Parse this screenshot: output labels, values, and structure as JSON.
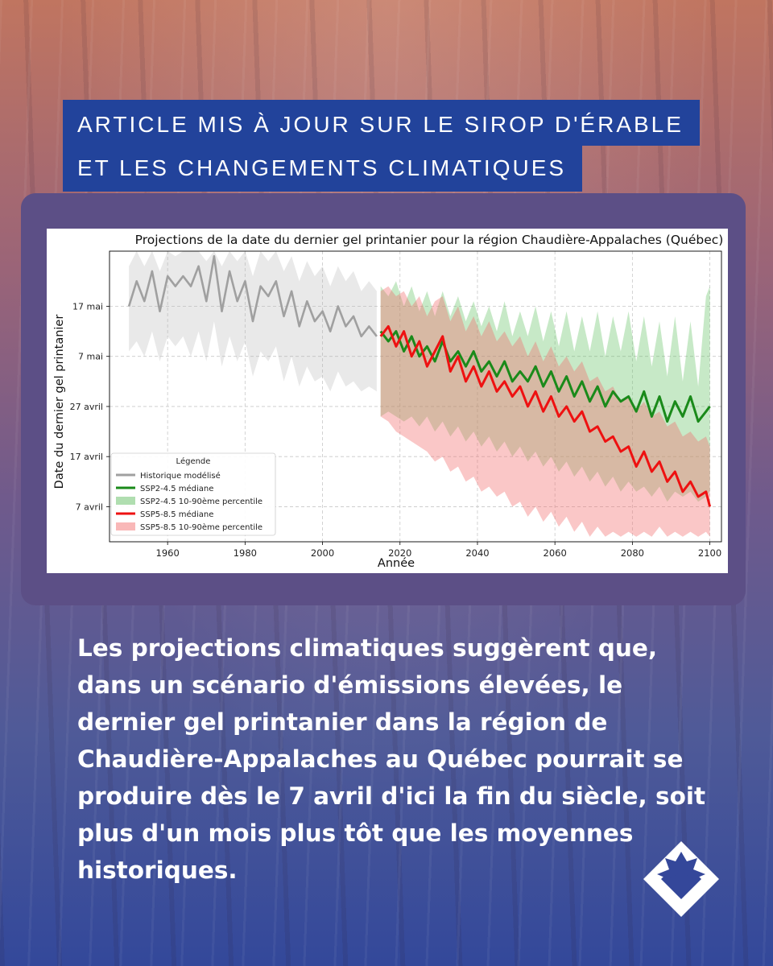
{
  "header": {
    "title_line1": "ARTICLE MIS À JOUR SUR LE SIROP D'ÉRABLE",
    "title_line2": "ET LES CHANGEMENTS CLIMATIQUES"
  },
  "caption": "Les projections climatiques suggèrent que, dans un scénario d'émissions élevées, le dernier gel printanier dans la région de Chaudière-Appalaches au Québec pourrait se produire dès le 7 avril d'ici la fin du siècle, soit plus d'un mois plus tôt que les moyennes historiques.",
  "logo": {
    "icon": "maple-leaf-diamond-icon"
  },
  "chart_data": {
    "type": "line",
    "title": "Projections de la date du dernier gel printanier pour la région Chaudière-Appalaches (Québec)",
    "xlabel": "Année",
    "ylabel": "Date du dernier gel printanier",
    "xlim": [
      1945,
      2103
    ],
    "ylim": [
      "2001-03-31",
      "2001-05-28"
    ],
    "x_ticks": [
      1960,
      1980,
      2000,
      2020,
      2040,
      2060,
      2080,
      2100
    ],
    "y_ticks": [
      {
        "date": "2001-04-07",
        "label": "7 avril"
      },
      {
        "date": "2001-04-17",
        "label": "17 avril"
      },
      {
        "date": "2001-04-27",
        "label": "27 avril"
      },
      {
        "date": "2001-05-07",
        "label": "7 mai"
      },
      {
        "date": "2001-05-17",
        "label": "17 mai"
      }
    ],
    "grid": true,
    "legend": {
      "title": "Légende",
      "placement": "lower-left",
      "entries": [
        {
          "label": "Historique modélisé",
          "kind": "line",
          "color": "#a0a0a0"
        },
        {
          "label": "SSP2-4.5 médiane",
          "kind": "line",
          "color": "#1a8a1a"
        },
        {
          "label": "SSP2-4.5 10-90ème percentile",
          "kind": "band",
          "color": "#8fd08f"
        },
        {
          "label": "SSP5-8.5 médiane",
          "kind": "line",
          "color": "#ee1111"
        },
        {
          "label": "SSP5-8.5 10-90ème percentile",
          "kind": "band",
          "color": "#f79a9a"
        }
      ]
    },
    "series": [
      {
        "name": "Historique modélisé",
        "color": "#a0a0a0",
        "x": [
          1950,
          1952,
          1954,
          1956,
          1958,
          1960,
          1962,
          1964,
          1966,
          1968,
          1970,
          1972,
          1974,
          1976,
          1978,
          1980,
          1982,
          1984,
          1986,
          1988,
          1990,
          1992,
          1994,
          1996,
          1998,
          2000,
          2002,
          2004,
          2006,
          2008,
          2010,
          2012,
          2014
        ],
        "y": [
          "2001-05-17",
          "2001-05-22",
          "2001-05-18",
          "2001-05-24",
          "2001-05-16",
          "2001-05-23",
          "2001-05-21",
          "2001-05-23",
          "2001-05-21",
          "2001-05-25",
          "2001-05-18",
          "2001-05-27",
          "2001-05-16",
          "2001-05-24",
          "2001-05-18",
          "2001-05-22",
          "2001-05-14",
          "2001-05-21",
          "2001-05-19",
          "2001-05-22",
          "2001-05-15",
          "2001-05-20",
          "2001-05-13",
          "2001-05-18",
          "2001-05-14",
          "2001-05-16",
          "2001-05-12",
          "2001-05-17",
          "2001-05-13",
          "2001-05-15",
          "2001-05-11",
          "2001-05-13",
          "2001-05-11"
        ],
        "band_low": [
          "2001-05-08",
          "2001-05-10",
          "2001-05-07",
          "2001-05-12",
          "2001-05-06",
          "2001-05-11",
          "2001-05-09",
          "2001-05-11",
          "2001-05-07",
          "2001-05-12",
          "2001-05-06",
          "2001-05-14",
          "2001-05-05",
          "2001-05-11",
          "2001-05-06",
          "2001-05-10",
          "2001-05-03",
          "2001-05-08",
          "2001-05-06",
          "2001-05-09",
          "2001-05-02",
          "2001-05-07",
          "2001-05-01",
          "2001-05-05",
          "2001-05-02",
          "2001-05-03",
          "2001-04-30",
          "2001-05-04",
          "2001-05-01",
          "2001-05-02",
          "2001-04-30",
          "2001-05-01",
          "2001-04-30"
        ],
        "band_high": [
          "2001-05-25",
          "2001-05-28",
          "2001-05-25",
          "2001-05-28",
          "2001-05-24",
          "2001-05-28",
          "2001-05-27",
          "2001-05-28",
          "2001-05-28",
          "2001-05-28",
          "2001-05-26",
          "2001-05-28",
          "2001-05-25",
          "2001-05-28",
          "2001-05-26",
          "2001-05-28",
          "2001-05-23",
          "2001-05-28",
          "2001-05-26",
          "2001-05-28",
          "2001-05-24",
          "2001-05-27",
          "2001-05-22",
          "2001-05-26",
          "2001-05-23",
          "2001-05-25",
          "2001-05-21",
          "2001-05-25",
          "2001-05-22",
          "2001-05-24",
          "2001-05-20",
          "2001-05-22",
          "2001-05-20"
        ]
      },
      {
        "name": "SSP2-4.5 médiane",
        "color": "#1a8a1a",
        "band_color": "#8fd08f",
        "x": [
          2015,
          2017,
          2019,
          2021,
          2023,
          2025,
          2027,
          2029,
          2031,
          2033,
          2035,
          2037,
          2039,
          2041,
          2043,
          2045,
          2047,
          2049,
          2051,
          2053,
          2055,
          2057,
          2059,
          2061,
          2063,
          2065,
          2067,
          2069,
          2071,
          2073,
          2075,
          2077,
          2079,
          2081,
          2083,
          2085,
          2087,
          2089,
          2091,
          2093,
          2095,
          2097,
          2099,
          2100
        ],
        "y": [
          "2001-05-12",
          "2001-05-10",
          "2001-05-12",
          "2001-05-08",
          "2001-05-11",
          "2001-05-07",
          "2001-05-09",
          "2001-05-06",
          "2001-05-10",
          "2001-05-06",
          "2001-05-08",
          "2001-05-05",
          "2001-05-08",
          "2001-05-04",
          "2001-05-06",
          "2001-05-03",
          "2001-05-06",
          "2001-05-02",
          "2001-05-04",
          "2001-05-02",
          "2001-05-05",
          "2001-05-01",
          "2001-05-04",
          "2001-04-30",
          "2001-05-03",
          "2001-04-29",
          "2001-05-02",
          "2001-04-28",
          "2001-05-01",
          "2001-04-27",
          "2001-04-30",
          "2001-04-28",
          "2001-04-29",
          "2001-04-26",
          "2001-04-30",
          "2001-04-25",
          "2001-04-29",
          "2001-04-24",
          "2001-04-28",
          "2001-04-25",
          "2001-04-29",
          "2001-04-24",
          "2001-04-26",
          "2001-04-27"
        ],
        "band_low": [
          "2001-04-25",
          "2001-04-26",
          "2001-04-25",
          "2001-04-24",
          "2001-04-25",
          "2001-04-23",
          "2001-04-25",
          "2001-04-22",
          "2001-04-24",
          "2001-04-21",
          "2001-04-23",
          "2001-04-20",
          "2001-04-22",
          "2001-04-19",
          "2001-04-21",
          "2001-04-18",
          "2001-04-20",
          "2001-04-17",
          "2001-04-19",
          "2001-04-16",
          "2001-04-18",
          "2001-04-15",
          "2001-04-17",
          "2001-04-14",
          "2001-04-16",
          "2001-04-13",
          "2001-04-15",
          "2001-04-12",
          "2001-04-14",
          "2001-04-11",
          "2001-04-13",
          "2001-04-10",
          "2001-04-12",
          "2001-04-10",
          "2001-04-11",
          "2001-04-09",
          "2001-04-11",
          "2001-04-08",
          "2001-04-10",
          "2001-04-09",
          "2001-04-10",
          "2001-04-08",
          "2001-04-09",
          "2001-04-10"
        ],
        "band_high": [
          "2001-05-21",
          "2001-05-19",
          "2001-05-22",
          "2001-05-17",
          "2001-05-21",
          "2001-05-16",
          "2001-05-20",
          "2001-05-15",
          "2001-05-20",
          "2001-05-15",
          "2001-05-19",
          "2001-05-14",
          "2001-05-18",
          "2001-05-13",
          "2001-05-17",
          "2001-05-12",
          "2001-05-18",
          "2001-05-11",
          "2001-05-16",
          "2001-05-11",
          "2001-05-17",
          "2001-05-10",
          "2001-05-16",
          "2001-05-09",
          "2001-05-16",
          "2001-05-08",
          "2001-05-15",
          "2001-05-08",
          "2001-05-16",
          "2001-05-07",
          "2001-05-15",
          "2001-05-08",
          "2001-05-16",
          "2001-05-06",
          "2001-05-15",
          "2001-05-05",
          "2001-05-14",
          "2001-05-03",
          "2001-05-15",
          "2001-05-02",
          "2001-05-14",
          "2001-05-01",
          "2001-05-19",
          "2001-05-21"
        ]
      },
      {
        "name": "SSP5-8.5 médiane",
        "color": "#ee1111",
        "band_color": "#f79a9a",
        "x": [
          2015,
          2017,
          2019,
          2021,
          2023,
          2025,
          2027,
          2029,
          2031,
          2033,
          2035,
          2037,
          2039,
          2041,
          2043,
          2045,
          2047,
          2049,
          2051,
          2053,
          2055,
          2057,
          2059,
          2061,
          2063,
          2065,
          2067,
          2069,
          2071,
          2073,
          2075,
          2077,
          2079,
          2081,
          2083,
          2085,
          2087,
          2089,
          2091,
          2093,
          2095,
          2097,
          2099,
          2100
        ],
        "y": [
          "2001-05-11",
          "2001-05-13",
          "2001-05-09",
          "2001-05-12",
          "2001-05-07",
          "2001-05-10",
          "2001-05-05",
          "2001-05-08",
          "2001-05-11",
          "2001-05-04",
          "2001-05-07",
          "2001-05-02",
          "2001-05-05",
          "2001-05-01",
          "2001-05-04",
          "2001-04-30",
          "2001-05-02",
          "2001-04-29",
          "2001-05-01",
          "2001-04-27",
          "2001-04-30",
          "2001-04-26",
          "2001-04-29",
          "2001-04-25",
          "2001-04-27",
          "2001-04-24",
          "2001-04-26",
          "2001-04-22",
          "2001-04-23",
          "2001-04-20",
          "2001-04-21",
          "2001-04-18",
          "2001-04-19",
          "2001-04-15",
          "2001-04-18",
          "2001-04-14",
          "2001-04-16",
          "2001-04-12",
          "2001-04-14",
          "2001-04-10",
          "2001-04-12",
          "2001-04-09",
          "2001-04-10",
          "2001-04-07"
        ],
        "band_low": [
          "2001-04-25",
          "2001-04-24",
          "2001-04-22",
          "2001-04-21",
          "2001-04-20",
          "2001-04-19",
          "2001-04-18",
          "2001-04-16",
          "2001-04-17",
          "2001-04-14",
          "2001-04-15",
          "2001-04-12",
          "2001-04-13",
          "2001-04-10",
          "2001-04-11",
          "2001-04-09",
          "2001-04-10",
          "2001-04-07",
          "2001-04-08",
          "2001-04-05",
          "2001-04-07",
          "2001-04-04",
          "2001-04-06",
          "2001-04-03",
          "2001-04-05",
          "2001-04-02",
          "2001-04-04",
          "2001-04-01",
          "2001-04-03",
          "2001-04-01",
          "2001-04-02",
          "2001-04-01",
          "2001-04-02",
          "2001-04-01",
          "2001-04-02",
          "2001-04-01",
          "2001-04-03",
          "2001-04-01",
          "2001-04-02",
          "2001-04-01",
          "2001-04-02",
          "2001-04-01",
          "2001-04-02",
          "2001-04-01"
        ],
        "band_high": [
          "2001-05-20",
          "2001-05-21",
          "2001-05-19",
          "2001-05-20",
          "2001-05-17",
          "2001-05-19",
          "2001-05-15",
          "2001-05-18",
          "2001-05-19",
          "2001-05-14",
          "2001-05-17",
          "2001-05-12",
          "2001-05-15",
          "2001-05-11",
          "2001-05-14",
          "2001-05-10",
          "2001-05-12",
          "2001-05-09",
          "2001-05-11",
          "2001-05-07",
          "2001-05-10",
          "2001-05-06",
          "2001-05-09",
          "2001-05-05",
          "2001-05-07",
          "2001-05-04",
          "2001-05-06",
          "2001-05-02",
          "2001-05-03",
          "2001-04-30",
          "2001-05-01",
          "2001-04-28",
          "2001-04-29",
          "2001-04-26",
          "2001-04-28",
          "2001-04-25",
          "2001-04-26",
          "2001-04-23",
          "2001-04-24",
          "2001-04-21",
          "2001-04-22",
          "2001-04-20",
          "2001-04-21",
          "2001-04-19"
        ]
      }
    ]
  }
}
